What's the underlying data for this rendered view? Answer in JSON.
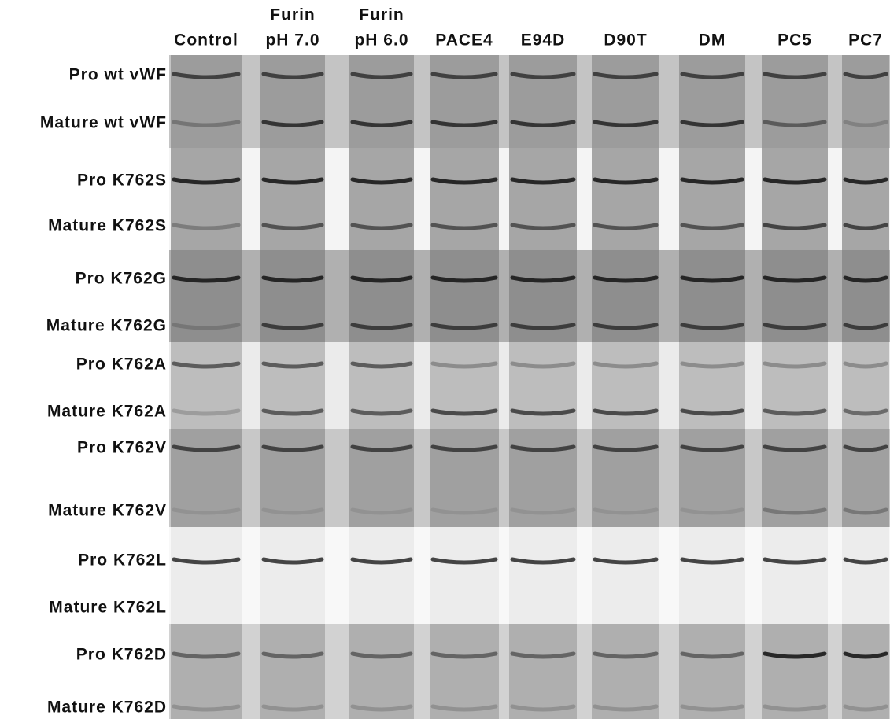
{
  "columns": [
    [
      "Control"
    ],
    [
      "Furin",
      "pH 7.0"
    ],
    [
      "Furin",
      "pH 6.0"
    ],
    [
      "PACE4"
    ],
    [
      "E94D"
    ],
    [
      "D90T"
    ],
    [
      "DM"
    ],
    [
      "PC5"
    ],
    [
      "PC7"
    ]
  ],
  "panels": [
    [
      "Pro wt vWF",
      "Mature wt vWF"
    ],
    [
      "Pro K762S",
      "Mature K762S"
    ],
    [
      "Pro K762G",
      "Mature K762G"
    ],
    [
      "Pro K762A",
      "Mature K762A"
    ],
    [
      "Pro K762V",
      "Mature K762V"
    ],
    [
      "Pro K762L",
      "Mature K762L"
    ],
    [
      "Pro K762D",
      "Mature K762D"
    ]
  ]
}
